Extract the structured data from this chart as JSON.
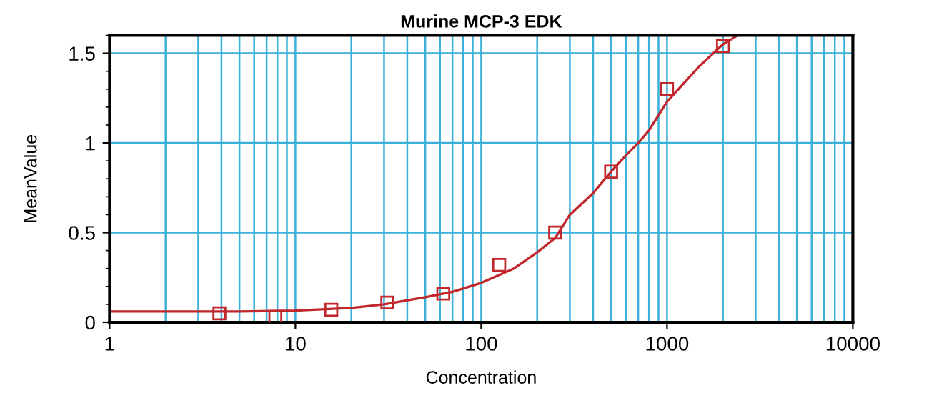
{
  "chart_data": {
    "type": "scatter",
    "title": "Murine MCP-3 EDK",
    "xlabel": "Concentration",
    "ylabel": "MeanValue",
    "log": "x",
    "xlim": [
      1,
      10000
    ],
    "xticks": [
      1,
      10,
      100,
      1000,
      10000
    ],
    "ylim": [
      0,
      1.6
    ],
    "yticks": [
      0,
      0.5,
      1,
      1.5
    ],
    "grid": true,
    "series": [
      {
        "marker": "square",
        "color": "#c0282d",
        "x": [
          3.9,
          7.8,
          15.6,
          31.25,
          62.5,
          125,
          250,
          500,
          1000,
          2000
        ],
        "values": [
          0.05,
          0.03,
          0.07,
          0.11,
          0.16,
          0.32,
          0.5,
          0.84,
          1.3,
          1.54
        ]
      },
      {
        "type": "line",
        "color": "#c0282d",
        "x": [
          1,
          5,
          10,
          20,
          30,
          50,
          70,
          100,
          150,
          200,
          250,
          300,
          400,
          500,
          600,
          700,
          800,
          1000,
          1500,
          2000,
          2400
        ],
        "values": [
          0.06,
          0.06,
          0.065,
          0.08,
          0.1,
          0.14,
          0.17,
          0.22,
          0.3,
          0.39,
          0.47,
          0.6,
          0.72,
          0.84,
          0.93,
          1.0,
          1.07,
          1.23,
          1.43,
          1.55,
          1.6
        ]
      }
    ]
  }
}
